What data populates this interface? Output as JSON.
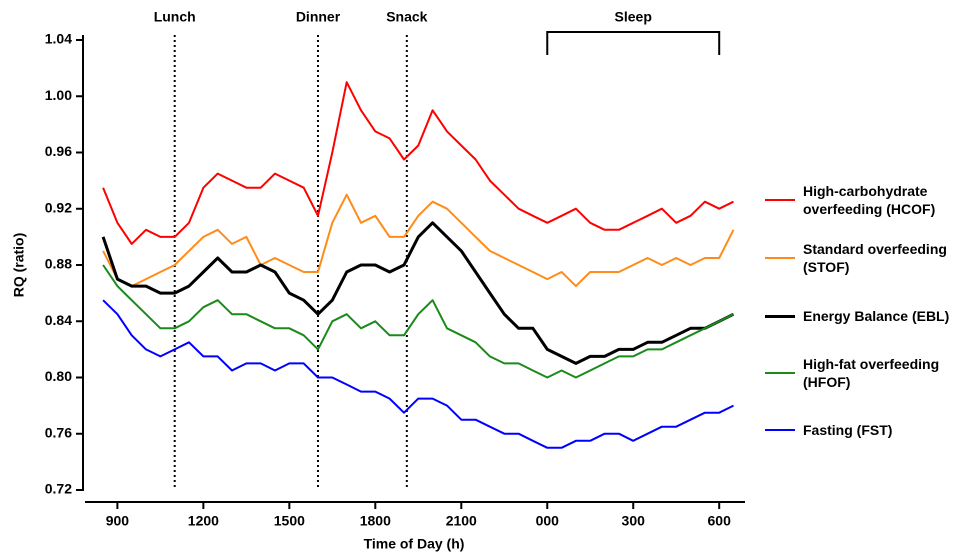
{
  "chart_data": {
    "type": "line",
    "xlabel": "Time of Day (h)",
    "ylabel": "RQ (ratio)",
    "x": [
      8.5,
      9,
      9.5,
      10,
      10.5,
      11,
      11.5,
      12,
      12.5,
      13,
      13.5,
      14,
      14.5,
      15,
      15.5,
      16,
      16.5,
      17,
      17.5,
      18,
      18.5,
      19,
      19.5,
      20,
      20.5,
      21,
      21.5,
      22,
      22.5,
      23,
      23.5,
      24,
      24.5,
      25,
      25.5,
      26,
      26.5,
      27,
      27.5,
      28,
      28.5,
      29,
      29.5,
      30,
      30.5
    ],
    "series": [
      {
        "name": "High-carbohydrate overfeeding (HCOF)",
        "color": "#ff0000",
        "values": [
          0.935,
          0.91,
          0.895,
          0.905,
          0.9,
          0.9,
          0.91,
          0.935,
          0.945,
          0.94,
          0.935,
          0.935,
          0.945,
          0.94,
          0.935,
          0.915,
          0.96,
          1.01,
          0.99,
          0.975,
          0.97,
          0.955,
          0.965,
          0.99,
          0.975,
          0.965,
          0.955,
          0.94,
          0.93,
          0.92,
          0.915,
          0.91,
          0.915,
          0.92,
          0.91,
          0.905,
          0.905,
          0.91,
          0.915,
          0.92,
          0.91,
          0.915,
          0.925,
          0.92,
          0.925
        ]
      },
      {
        "name": "Standard overfeeding (STOF)",
        "color": "#ff8c1a",
        "values": [
          0.89,
          0.87,
          0.865,
          0.87,
          0.875,
          0.88,
          0.89,
          0.9,
          0.905,
          0.895,
          0.9,
          0.88,
          0.885,
          0.88,
          0.875,
          0.875,
          0.91,
          0.93,
          0.91,
          0.915,
          0.9,
          0.9,
          0.915,
          0.925,
          0.92,
          0.91,
          0.9,
          0.89,
          0.885,
          0.88,
          0.875,
          0.87,
          0.875,
          0.865,
          0.875,
          0.875,
          0.875,
          0.88,
          0.885,
          0.88,
          0.885,
          0.88,
          0.885,
          0.885,
          0.905
        ]
      },
      {
        "name": "Energy Balance (EBL)",
        "color": "#000000",
        "width": 3,
        "values": [
          0.9,
          0.87,
          0.865,
          0.865,
          0.86,
          0.86,
          0.865,
          0.875,
          0.885,
          0.875,
          0.875,
          0.88,
          0.875,
          0.86,
          0.855,
          0.845,
          0.855,
          0.875,
          0.88,
          0.88,
          0.875,
          0.88,
          0.9,
          0.91,
          0.9,
          0.89,
          0.875,
          0.86,
          0.845,
          0.835,
          0.835,
          0.82,
          0.815,
          0.81,
          0.815,
          0.815,
          0.82,
          0.82,
          0.825,
          0.825,
          0.83,
          0.835,
          0.835,
          0.84,
          0.845
        ]
      },
      {
        "name": "High-fat overfeeding (HFOF)",
        "color": "#1a8a1a",
        "values": [
          0.88,
          0.865,
          0.855,
          0.845,
          0.835,
          0.835,
          0.84,
          0.85,
          0.855,
          0.845,
          0.845,
          0.84,
          0.835,
          0.835,
          0.83,
          0.82,
          0.84,
          0.845,
          0.835,
          0.84,
          0.83,
          0.83,
          0.845,
          0.855,
          0.835,
          0.83,
          0.825,
          0.815,
          0.81,
          0.81,
          0.805,
          0.8,
          0.805,
          0.8,
          0.805,
          0.81,
          0.815,
          0.815,
          0.82,
          0.82,
          0.825,
          0.83,
          0.835,
          0.84,
          0.845
        ]
      },
      {
        "name": "Fasting (FST)",
        "color": "#0000ff",
        "values": [
          0.855,
          0.845,
          0.83,
          0.82,
          0.815,
          0.82,
          0.825,
          0.815,
          0.815,
          0.805,
          0.81,
          0.81,
          0.805,
          0.81,
          0.81,
          0.8,
          0.8,
          0.795,
          0.79,
          0.79,
          0.785,
          0.775,
          0.785,
          0.785,
          0.78,
          0.77,
          0.77,
          0.765,
          0.76,
          0.76,
          0.755,
          0.75,
          0.75,
          0.755,
          0.755,
          0.76,
          0.76,
          0.755,
          0.76,
          0.765,
          0.765,
          0.77,
          0.775,
          0.775,
          0.78
        ]
      }
    ],
    "xlim": [
      7.8,
      30.9
    ],
    "xticks": [
      {
        "value": 9,
        "label": "900"
      },
      {
        "value": 12,
        "label": "1200"
      },
      {
        "value": 15,
        "label": "1500"
      },
      {
        "value": 18,
        "label": "1800"
      },
      {
        "value": 21,
        "label": "2100"
      },
      {
        "value": 24,
        "label": "000"
      },
      {
        "value": 27,
        "label": "300"
      },
      {
        "value": 30,
        "label": "600"
      }
    ],
    "ylim": [
      0.72,
      1.04
    ],
    "yticks": [
      0.72,
      0.76,
      {
        "value": 0.8,
        "label": "0.80"
      },
      0.84,
      0.88,
      0.92,
      0.96,
      {
        "value": 1,
        "label": "1.00"
      },
      1.04
    ],
    "annotations": [
      {
        "text": "Lunch",
        "x": 11
      },
      {
        "text": "Dinner",
        "x": 16
      },
      {
        "text": "Snack",
        "x": 19.1
      }
    ],
    "bracket": {
      "text": "Sleep",
      "x": [
        24,
        30
      ]
    }
  }
}
